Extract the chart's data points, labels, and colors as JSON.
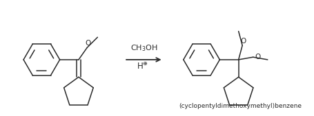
{
  "bg_color": "#ffffff",
  "line_color": "#2a2a2a",
  "text_color": "#2a2a2a",
  "figsize": [
    4.56,
    1.69
  ],
  "dpi": 100,
  "reagent_line1": "CH$_3$OH",
  "reagent_line2": "H$^{\\oplus}$",
  "product_label": "(cyclopentyldimethoxymethyl)benzene",
  "lw": 1.1
}
